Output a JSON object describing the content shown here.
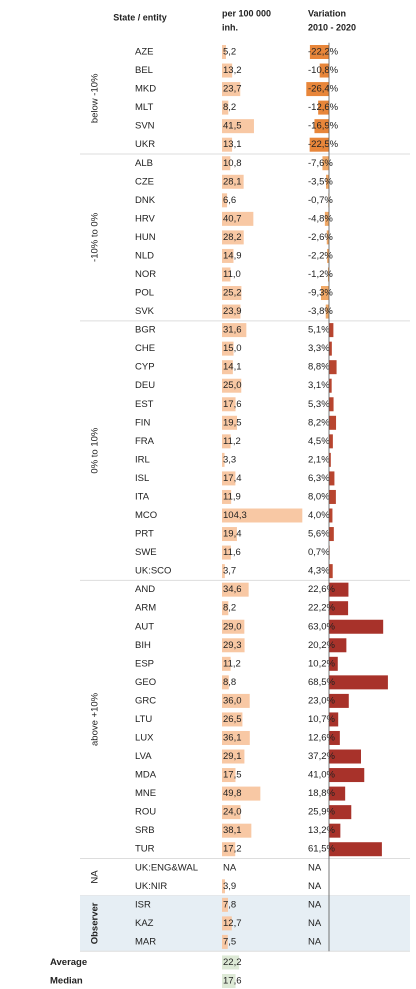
{
  "header": {
    "entity": "State / entity",
    "rate_1": "per 100 000",
    "rate_2": "inh.",
    "var_1": "Variation",
    "var_2": "2010 - 2020"
  },
  "groups": [
    {
      "label": "below -10%",
      "color": "#e8863a",
      "rows": [
        {
          "code": "AZE",
          "rate": 5.2,
          "rate_label": "5,2",
          "variation": -22.2,
          "variation_label": "-22,2%"
        },
        {
          "code": "BEL",
          "rate": 13.2,
          "rate_label": "13,2",
          "variation": -10.8,
          "variation_label": "-10,8%"
        },
        {
          "code": "MKD",
          "rate": 23.7,
          "rate_label": "23,7",
          "variation": -26.4,
          "variation_label": "-26,4%"
        },
        {
          "code": "MLT",
          "rate": 8.2,
          "rate_label": "8,2",
          "variation": -12.6,
          "variation_label": "-12,6%"
        },
        {
          "code": "SVN",
          "rate": 41.5,
          "rate_label": "41,5",
          "variation": -16.9,
          "variation_label": "-16,9%"
        },
        {
          "code": "UKR",
          "rate": 13.1,
          "rate_label": "13,1",
          "variation": -22.5,
          "variation_label": "-22,5%"
        }
      ]
    },
    {
      "label": "-10% to 0%",
      "color": "#f0a866",
      "rows": [
        {
          "code": "ALB",
          "rate": 10.8,
          "rate_label": "10,8",
          "variation": -7.6,
          "variation_label": "-7,6%"
        },
        {
          "code": "CZE",
          "rate": 28.1,
          "rate_label": "28,1",
          "variation": -3.5,
          "variation_label": "-3,5%"
        },
        {
          "code": "DNK",
          "rate": 6.6,
          "rate_label": "6,6",
          "variation": -0.7,
          "variation_label": "-0,7%"
        },
        {
          "code": "HRV",
          "rate": 40.7,
          "rate_label": "40,7",
          "variation": -4.8,
          "variation_label": "-4,8%"
        },
        {
          "code": "HUN",
          "rate": 28.2,
          "rate_label": "28,2",
          "variation": -2.6,
          "variation_label": "-2,6%"
        },
        {
          "code": "NLD",
          "rate": 14.9,
          "rate_label": "14,9",
          "variation": -2.2,
          "variation_label": "-2,2%"
        },
        {
          "code": "NOR",
          "rate": 11.0,
          "rate_label": "11,0",
          "variation": -1.2,
          "variation_label": "-1,2%"
        },
        {
          "code": "POL",
          "rate": 25.2,
          "rate_label": "25,2",
          "variation": -9.3,
          "variation_label": "-9,3%"
        },
        {
          "code": "SVK",
          "rate": 23.9,
          "rate_label": "23,9",
          "variation": -3.8,
          "variation_label": "-3,8%"
        }
      ]
    },
    {
      "label": "0% to 10%",
      "color": "#b8452f",
      "rows": [
        {
          "code": "BGR",
          "rate": 31.6,
          "rate_label": "31,6",
          "variation": 5.1,
          "variation_label": "5,1%"
        },
        {
          "code": "CHE",
          "rate": 15.0,
          "rate_label": "15,0",
          "variation": 3.3,
          "variation_label": "3,3%"
        },
        {
          "code": "CYP",
          "rate": 14.1,
          "rate_label": "14,1",
          "variation": 8.8,
          "variation_label": "8,8%"
        },
        {
          "code": "DEU",
          "rate": 25.0,
          "rate_label": "25,0",
          "variation": 3.1,
          "variation_label": "3,1%"
        },
        {
          "code": "EST",
          "rate": 17.6,
          "rate_label": "17,6",
          "variation": 5.3,
          "variation_label": "5,3%"
        },
        {
          "code": "FIN",
          "rate": 19.5,
          "rate_label": "19,5",
          "variation": 8.2,
          "variation_label": "8,2%"
        },
        {
          "code": "FRA",
          "rate": 11.2,
          "rate_label": "11,2",
          "variation": 4.5,
          "variation_label": "4,5%"
        },
        {
          "code": "IRL",
          "rate": 3.3,
          "rate_label": "3,3",
          "variation": 2.1,
          "variation_label": "2,1%"
        },
        {
          "code": "ISL",
          "rate": 17.4,
          "rate_label": "17,4",
          "variation": 6.3,
          "variation_label": "6,3%"
        },
        {
          "code": "ITA",
          "rate": 11.9,
          "rate_label": "11,9",
          "variation": 8.0,
          "variation_label": "8,0%"
        },
        {
          "code": "MCO",
          "rate": 104.3,
          "rate_label": "104,3",
          "variation": 4.0,
          "variation_label": "4,0%"
        },
        {
          "code": "PRT",
          "rate": 19.4,
          "rate_label": "19,4",
          "variation": 5.6,
          "variation_label": "5,6%"
        },
        {
          "code": "SWE",
          "rate": 11.6,
          "rate_label": "11,6",
          "variation": 0.7,
          "variation_label": "0,7%"
        },
        {
          "code": "UK:SCO",
          "rate": 3.7,
          "rate_label": "3,7",
          "variation": 4.3,
          "variation_label": "4,3%"
        }
      ]
    },
    {
      "label": "above +10%",
      "color": "#a8322a",
      "rows": [
        {
          "code": "AND",
          "rate": 34.6,
          "rate_label": "34,6",
          "variation": 22.6,
          "variation_label": "22,6%"
        },
        {
          "code": "ARM",
          "rate": 8.2,
          "rate_label": "8,2",
          "variation": 22.2,
          "variation_label": "22,2%"
        },
        {
          "code": "AUT",
          "rate": 29.0,
          "rate_label": "29,0",
          "variation": 63.0,
          "variation_label": "63,0%"
        },
        {
          "code": "BIH",
          "rate": 29.3,
          "rate_label": "29,3",
          "variation": 20.2,
          "variation_label": "20,2%"
        },
        {
          "code": "ESP",
          "rate": 11.2,
          "rate_label": "11,2",
          "variation": 10.2,
          "variation_label": "10,2%"
        },
        {
          "code": "GEO",
          "rate": 8.8,
          "rate_label": "8,8",
          "variation": 68.5,
          "variation_label": "68,5%"
        },
        {
          "code": "GRC",
          "rate": 36.0,
          "rate_label": "36,0",
          "variation": 23.0,
          "variation_label": "23,0%"
        },
        {
          "code": "LTU",
          "rate": 26.5,
          "rate_label": "26,5",
          "variation": 10.7,
          "variation_label": "10,7%"
        },
        {
          "code": "LUX",
          "rate": 36.1,
          "rate_label": "36,1",
          "variation": 12.6,
          "variation_label": "12,6%"
        },
        {
          "code": "LVA",
          "rate": 29.1,
          "rate_label": "29,1",
          "variation": 37.2,
          "variation_label": "37,2%"
        },
        {
          "code": "MDA",
          "rate": 17.5,
          "rate_label": "17,5",
          "variation": 41.0,
          "variation_label": "41,0%"
        },
        {
          "code": "MNE",
          "rate": 49.8,
          "rate_label": "49,8",
          "variation": 18.8,
          "variation_label": "18,8%"
        },
        {
          "code": "ROU",
          "rate": 24.0,
          "rate_label": "24,0",
          "variation": 25.9,
          "variation_label": "25,9%"
        },
        {
          "code": "SRB",
          "rate": 38.1,
          "rate_label": "38,1",
          "variation": 13.2,
          "variation_label": "13,2%"
        },
        {
          "code": "TUR",
          "rate": 17.2,
          "rate_label": "17,2",
          "variation": 61.5,
          "variation_label": "61,5%"
        }
      ]
    },
    {
      "label": "NA",
      "color": "#a8322a",
      "rows": [
        {
          "code": "UK:ENG&WAL",
          "rate_label": "NA",
          "variation_label": "NA"
        },
        {
          "code": "UK:NIR",
          "rate": 3.9,
          "rate_label": "3,9",
          "variation_label": "NA"
        }
      ]
    },
    {
      "label": "Observer",
      "color": "#a8322a",
      "shaded": true,
      "rows": [
        {
          "code": "ISR",
          "rate": 7.8,
          "rate_label": "7,8",
          "variation_label": "NA"
        },
        {
          "code": "KAZ",
          "rate": 12.7,
          "rate_label": "12,7",
          "variation_label": "NA"
        },
        {
          "code": "MAR",
          "rate": 7.5,
          "rate_label": "7,5",
          "variation_label": "NA"
        }
      ]
    }
  ],
  "summary": [
    {
      "label": "Average",
      "value": 22.2,
      "value_label": "22,2"
    },
    {
      "label": "Median",
      "value": 17.6,
      "value_label": "17,6"
    }
  ]
}
